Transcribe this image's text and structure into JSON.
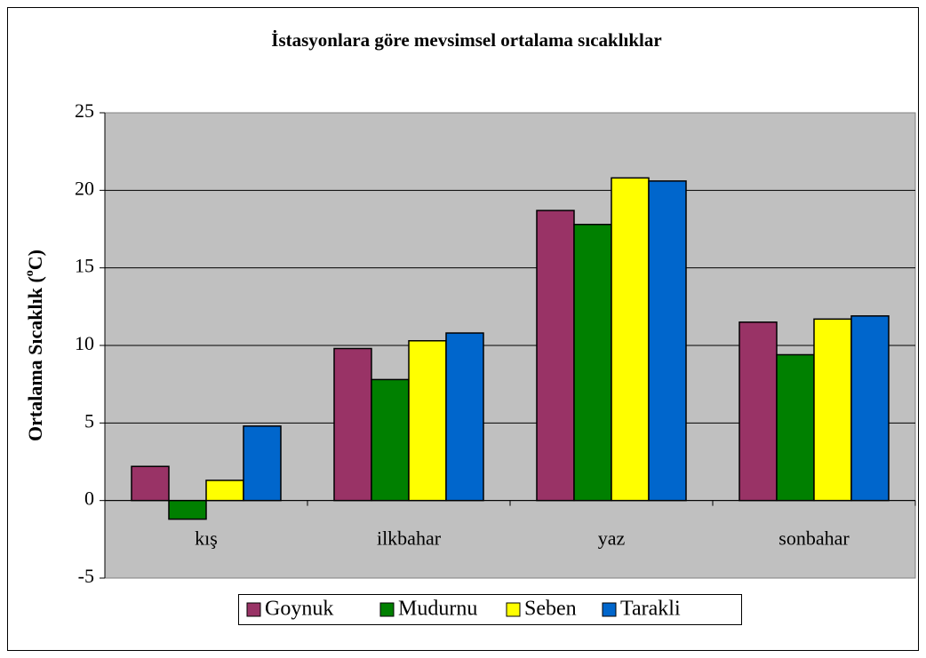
{
  "chart_data": {
    "type": "bar",
    "title": "İstasyonlara göre mevsimsel ortalama sıcaklıklar",
    "ylabel": [
      "Ortalama Sıcaklık (",
      "o",
      "C)"
    ],
    "categories": [
      "kış",
      "ilkbahar",
      "yaz",
      "sonbahar"
    ],
    "series": [
      {
        "name": "Goynuk",
        "color": "#993366",
        "values": [
          2.2,
          9.8,
          18.7,
          11.5
        ]
      },
      {
        "name": "Mudurnu",
        "color": "#008000",
        "values": [
          -1.2,
          7.8,
          17.8,
          9.4
        ]
      },
      {
        "name": "Seben",
        "color": "#ffff00",
        "values": [
          1.3,
          10.3,
          20.8,
          11.7
        ]
      },
      {
        "name": "Tarakli",
        "color": "#0066cc",
        "values": [
          4.8,
          10.8,
          20.6,
          11.9
        ]
      }
    ],
    "ylim": [
      -5,
      25
    ],
    "yticks": [
      -5,
      0,
      5,
      10,
      15,
      20,
      25
    ],
    "grid": true,
    "plot_background": "#c0c0c0",
    "legend": "bottom"
  }
}
